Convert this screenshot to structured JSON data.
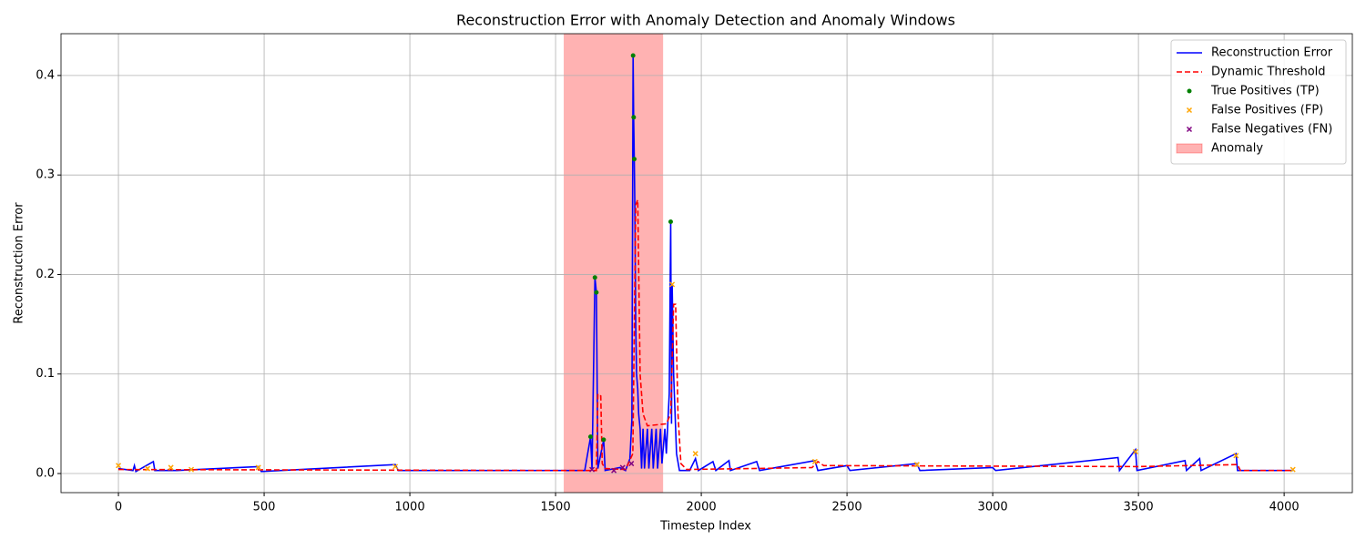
{
  "chart_data": {
    "type": "line",
    "title": "Reconstruction Error with Anomaly Detection and Anomaly Windows",
    "xlabel": "Timestep Index",
    "ylabel": "Reconstruction Error",
    "xlim": [
      -197,
      4234
    ],
    "ylim": [
      -0.0192,
      0.442
    ],
    "xticks": [
      0,
      500,
      1000,
      1500,
      2000,
      2500,
      3000,
      3500,
      4000
    ],
    "yticks": [
      {
        "value": 0,
        "label": "0.0"
      },
      0.1,
      0.2,
      0.3,
      0.4
    ],
    "grid": true,
    "legend": "upper right",
    "series": [
      {
        "name": "Reconstruction Error",
        "color": "#0000ff",
        "style": "solid",
        "marker": "line",
        "x": [
          0,
          50,
          55,
          60,
          120,
          125,
          200,
          480,
          490,
          950,
          960,
          1500,
          1600,
          1620,
          1625,
          1635,
          1640,
          1645,
          1665,
          1670,
          1720,
          1740,
          1755,
          1762,
          1766,
          1768,
          1770,
          1772,
          1775,
          1778,
          1782,
          1785,
          1790,
          1795,
          1800,
          1805,
          1815,
          1820,
          1830,
          1835,
          1845,
          1850,
          1860,
          1865,
          1875,
          1880,
          1890,
          1895,
          1898,
          1900,
          1905,
          1915,
          1925,
          1960,
          1980,
          1990,
          2040,
          2050,
          2095,
          2100,
          2190,
          2200,
          2390,
          2400,
          2500,
          2510,
          2740,
          2750,
          3000,
          3010,
          3430,
          3435,
          3490,
          3495,
          3660,
          3665,
          3710,
          3715,
          3835,
          3840,
          4030
        ],
        "values": [
          0.005,
          0.003,
          0.008,
          0.002,
          0.012,
          0.003,
          0.003,
          0.007,
          0.002,
          0.009,
          0.003,
          0.003,
          0.003,
          0.037,
          0.004,
          0.197,
          0.182,
          0.005,
          0.034,
          0.003,
          0.006,
          0.003,
          0.015,
          0.055,
          0.42,
          0.358,
          0.316,
          0.27,
          0.15,
          0.1,
          0.085,
          0.06,
          0.045,
          0.005,
          0.045,
          0.005,
          0.045,
          0.005,
          0.045,
          0.005,
          0.045,
          0.005,
          0.045,
          0.01,
          0.045,
          0.02,
          0.08,
          0.253,
          0.05,
          0.19,
          0.1,
          0.02,
          0.003,
          0.003,
          0.015,
          0.003,
          0.012,
          0.003,
          0.013,
          0.003,
          0.012,
          0.003,
          0.013,
          0.003,
          0.008,
          0.003,
          0.01,
          0.003,
          0.006,
          0.003,
          0.016,
          0.003,
          0.024,
          0.003,
          0.013,
          0.003,
          0.015,
          0.003,
          0.02,
          0.003,
          0.003
        ]
      },
      {
        "name": "Dynamic Threshold",
        "color": "#ff0000",
        "style": "dashed",
        "marker": "line",
        "x": [
          0,
          1500,
          1640,
          1645,
          1655,
          1660,
          1670,
          1740,
          1765,
          1775,
          1782,
          1790,
          1800,
          1815,
          1880,
          1895,
          1905,
          1912,
          1920,
          1930,
          1950,
          2380,
          2400,
          2420,
          3500,
          3840,
          3850,
          4030
        ],
        "values": [
          0.004,
          0.003,
          0.003,
          0.08,
          0.078,
          0.01,
          0.005,
          0.004,
          0.02,
          0.27,
          0.275,
          0.1,
          0.06,
          0.048,
          0.05,
          0.06,
          0.17,
          0.17,
          0.06,
          0.01,
          0.004,
          0.006,
          0.012,
          0.008,
          0.007,
          0.009,
          0.003,
          0.003
        ]
      },
      {
        "name": "True Positives (TP)",
        "color": "#008000",
        "marker": "circle",
        "x": [
          1620,
          1635,
          1640,
          1665,
          1766,
          1768,
          1770,
          1895
        ],
        "values": [
          0.037,
          0.197,
          0.182,
          0.034,
          0.42,
          0.358,
          0.316,
          0.253
        ]
      },
      {
        "name": "False Positives (FP)",
        "color": "#ffa500",
        "marker": "x",
        "x": [
          0,
          100,
          180,
          250,
          480,
          950,
          1900,
          1980,
          2390,
          2740,
          3490,
          3835,
          4030
        ],
        "values": [
          0.008,
          0.005,
          0.006,
          0.004,
          0.006,
          0.007,
          0.19,
          0.02,
          0.012,
          0.009,
          0.022,
          0.018,
          0.004
        ]
      },
      {
        "name": "False Negatives (FN)",
        "color": "#800080",
        "marker": "x",
        "x": [
          1625,
          1700,
          1730,
          1760
        ],
        "values": [
          0.004,
          0.003,
          0.006,
          0.01
        ]
      }
    ],
    "spans": [
      {
        "name": "Anomaly",
        "color": "#ff0000",
        "x": [
          1528,
          1869
        ]
      }
    ]
  }
}
